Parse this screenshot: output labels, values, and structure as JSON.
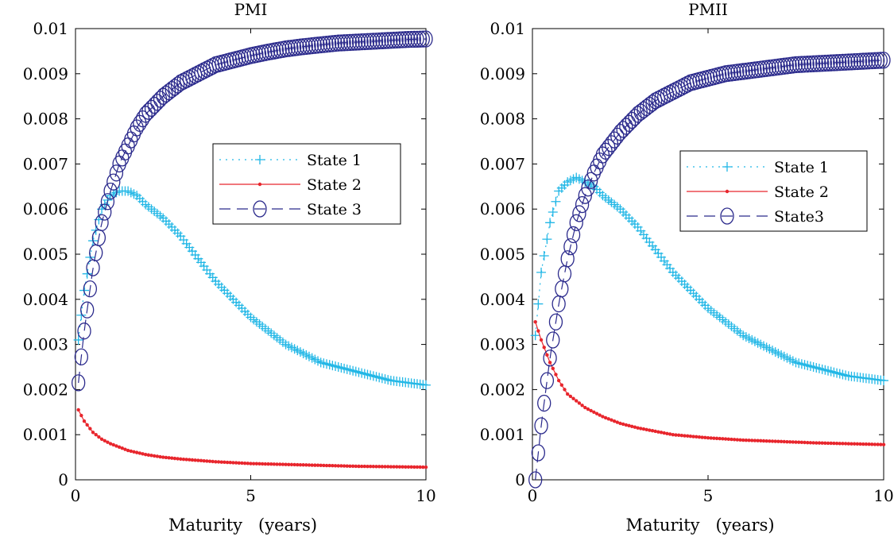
{
  "chart_data": [
    {
      "type": "line",
      "title": "PMI",
      "xlabel": "Maturity   (years)",
      "ylabel": "",
      "xlim": [
        0,
        10
      ],
      "ylim": [
        0,
        0.01
      ],
      "xticks": [
        "0",
        "5",
        "10"
      ],
      "yticks": [
        "0",
        "0.001",
        "0.002",
        "0.003",
        "0.004",
        "0.005",
        "0.006",
        "0.007",
        "0.008",
        "0.009",
        "0.01"
      ],
      "grid": false,
      "legend_position": "middle-right",
      "series": [
        {
          "name": "State 1",
          "marker": "plus",
          "line": "dotted",
          "color": "#22b7e6",
          "x": [
            0.083,
            0.25,
            0.5,
            0.75,
            1.0,
            1.25,
            1.5,
            1.75,
            2.0,
            2.5,
            3.0,
            3.5,
            4.0,
            4.5,
            5.0,
            5.5,
            6.0,
            6.5,
            7.0,
            7.5,
            8.0,
            8.5,
            9.0,
            9.5,
            10.0
          ],
          "values": [
            0.0031,
            0.0042,
            0.0053,
            0.006,
            0.0063,
            0.0064,
            0.0064,
            0.0063,
            0.0061,
            0.0058,
            0.0054,
            0.0049,
            0.0044,
            0.004,
            0.0036,
            0.0033,
            0.003,
            0.0028,
            0.0026,
            0.0025,
            0.0024,
            0.0023,
            0.0022,
            0.00215,
            0.0021
          ]
        },
        {
          "name": "State 2",
          "marker": "dot",
          "line": "solid",
          "color": "#e8262d",
          "x": [
            0.083,
            0.25,
            0.5,
            0.75,
            1.0,
            1.5,
            2.0,
            2.5,
            3.0,
            4.0,
            5.0,
            6.0,
            7.0,
            8.0,
            9.0,
            10.0
          ],
          "values": [
            0.00155,
            0.0013,
            0.00105,
            0.0009,
            0.0008,
            0.00065,
            0.00056,
            0.0005,
            0.00046,
            0.0004,
            0.00036,
            0.00034,
            0.00032,
            0.0003,
            0.00029,
            0.00028
          ]
        },
        {
          "name": "State 3",
          "marker": "circle",
          "line": "dashed",
          "color": "#2b2a8c",
          "x": [
            0.083,
            0.25,
            0.5,
            0.75,
            1.0,
            1.25,
            1.5,
            1.75,
            2.0,
            2.5,
            3.0,
            3.5,
            4.0,
            4.5,
            5.0,
            5.5,
            6.0,
            6.5,
            7.0,
            7.5,
            8.0,
            8.5,
            9.0,
            9.5,
            10.0
          ],
          "values": [
            0.00215,
            0.0033,
            0.0047,
            0.0057,
            0.0064,
            0.007,
            0.0074,
            0.0078,
            0.0081,
            0.0085,
            0.0088,
            0.009,
            0.0092,
            0.0093,
            0.0094,
            0.00948,
            0.00955,
            0.0096,
            0.00964,
            0.00968,
            0.0097,
            0.00972,
            0.00974,
            0.00976,
            0.00977
          ]
        }
      ]
    },
    {
      "type": "line",
      "title": "PMII",
      "xlabel": "Maturity   (years)",
      "ylabel": "",
      "xlim": [
        0,
        10
      ],
      "ylim": [
        0,
        0.01
      ],
      "xticks": [
        "0",
        "5",
        "10"
      ],
      "yticks": [
        "0",
        "0.001",
        "0.002",
        "0.003",
        "0.004",
        "0.005",
        "0.006",
        "0.007",
        "0.008",
        "0.009",
        "0.01"
      ],
      "grid": false,
      "legend_position": "middle-right",
      "series": [
        {
          "name": "State 1",
          "marker": "plus",
          "line": "dotted",
          "color": "#22b7e6",
          "x": [
            0.083,
            0.25,
            0.5,
            0.75,
            1.0,
            1.25,
            1.5,
            1.75,
            2.0,
            2.5,
            3.0,
            3.5,
            4.0,
            4.5,
            5.0,
            5.5,
            6.0,
            6.5,
            7.0,
            7.5,
            8.0,
            8.5,
            9.0,
            9.5,
            10.0
          ],
          "values": [
            0.0032,
            0.0046,
            0.0057,
            0.0064,
            0.0066,
            0.0067,
            0.0066,
            0.0065,
            0.0063,
            0.006,
            0.0056,
            0.0051,
            0.0046,
            0.0042,
            0.0038,
            0.0035,
            0.0032,
            0.003,
            0.0028,
            0.0026,
            0.0025,
            0.0024,
            0.0023,
            0.00225,
            0.0022
          ]
        },
        {
          "name": "State 2",
          "marker": "dot",
          "line": "solid",
          "color": "#e8262d",
          "x": [
            0.083,
            0.25,
            0.5,
            0.75,
            1.0,
            1.5,
            2.0,
            2.5,
            3.0,
            4.0,
            5.0,
            6.0,
            7.0,
            8.0,
            9.0,
            10.0
          ],
          "values": [
            0.0035,
            0.0031,
            0.0026,
            0.0022,
            0.0019,
            0.0016,
            0.0014,
            0.00125,
            0.00115,
            0.001,
            0.00093,
            0.00088,
            0.00085,
            0.00082,
            0.0008,
            0.00078
          ]
        },
        {
          "name": "State3",
          "marker": "circle",
          "line": "dashed",
          "color": "#2b2a8c",
          "x": [
            0.083,
            0.25,
            0.5,
            0.75,
            1.0,
            1.25,
            1.5,
            1.75,
            2.0,
            2.5,
            3.0,
            3.5,
            4.0,
            4.5,
            5.0,
            5.5,
            6.0,
            6.5,
            7.0,
            7.5,
            8.0,
            8.5,
            9.0,
            9.5,
            10.0
          ],
          "values": [
            0.0,
            0.0012,
            0.0027,
            0.0039,
            0.0049,
            0.0057,
            0.0063,
            0.0068,
            0.0072,
            0.0077,
            0.0081,
            0.0084,
            0.0086,
            0.0088,
            0.0089,
            0.009,
            0.00905,
            0.0091,
            0.00915,
            0.0092,
            0.00922,
            0.00924,
            0.00926,
            0.00928,
            0.0093
          ]
        }
      ]
    }
  ]
}
